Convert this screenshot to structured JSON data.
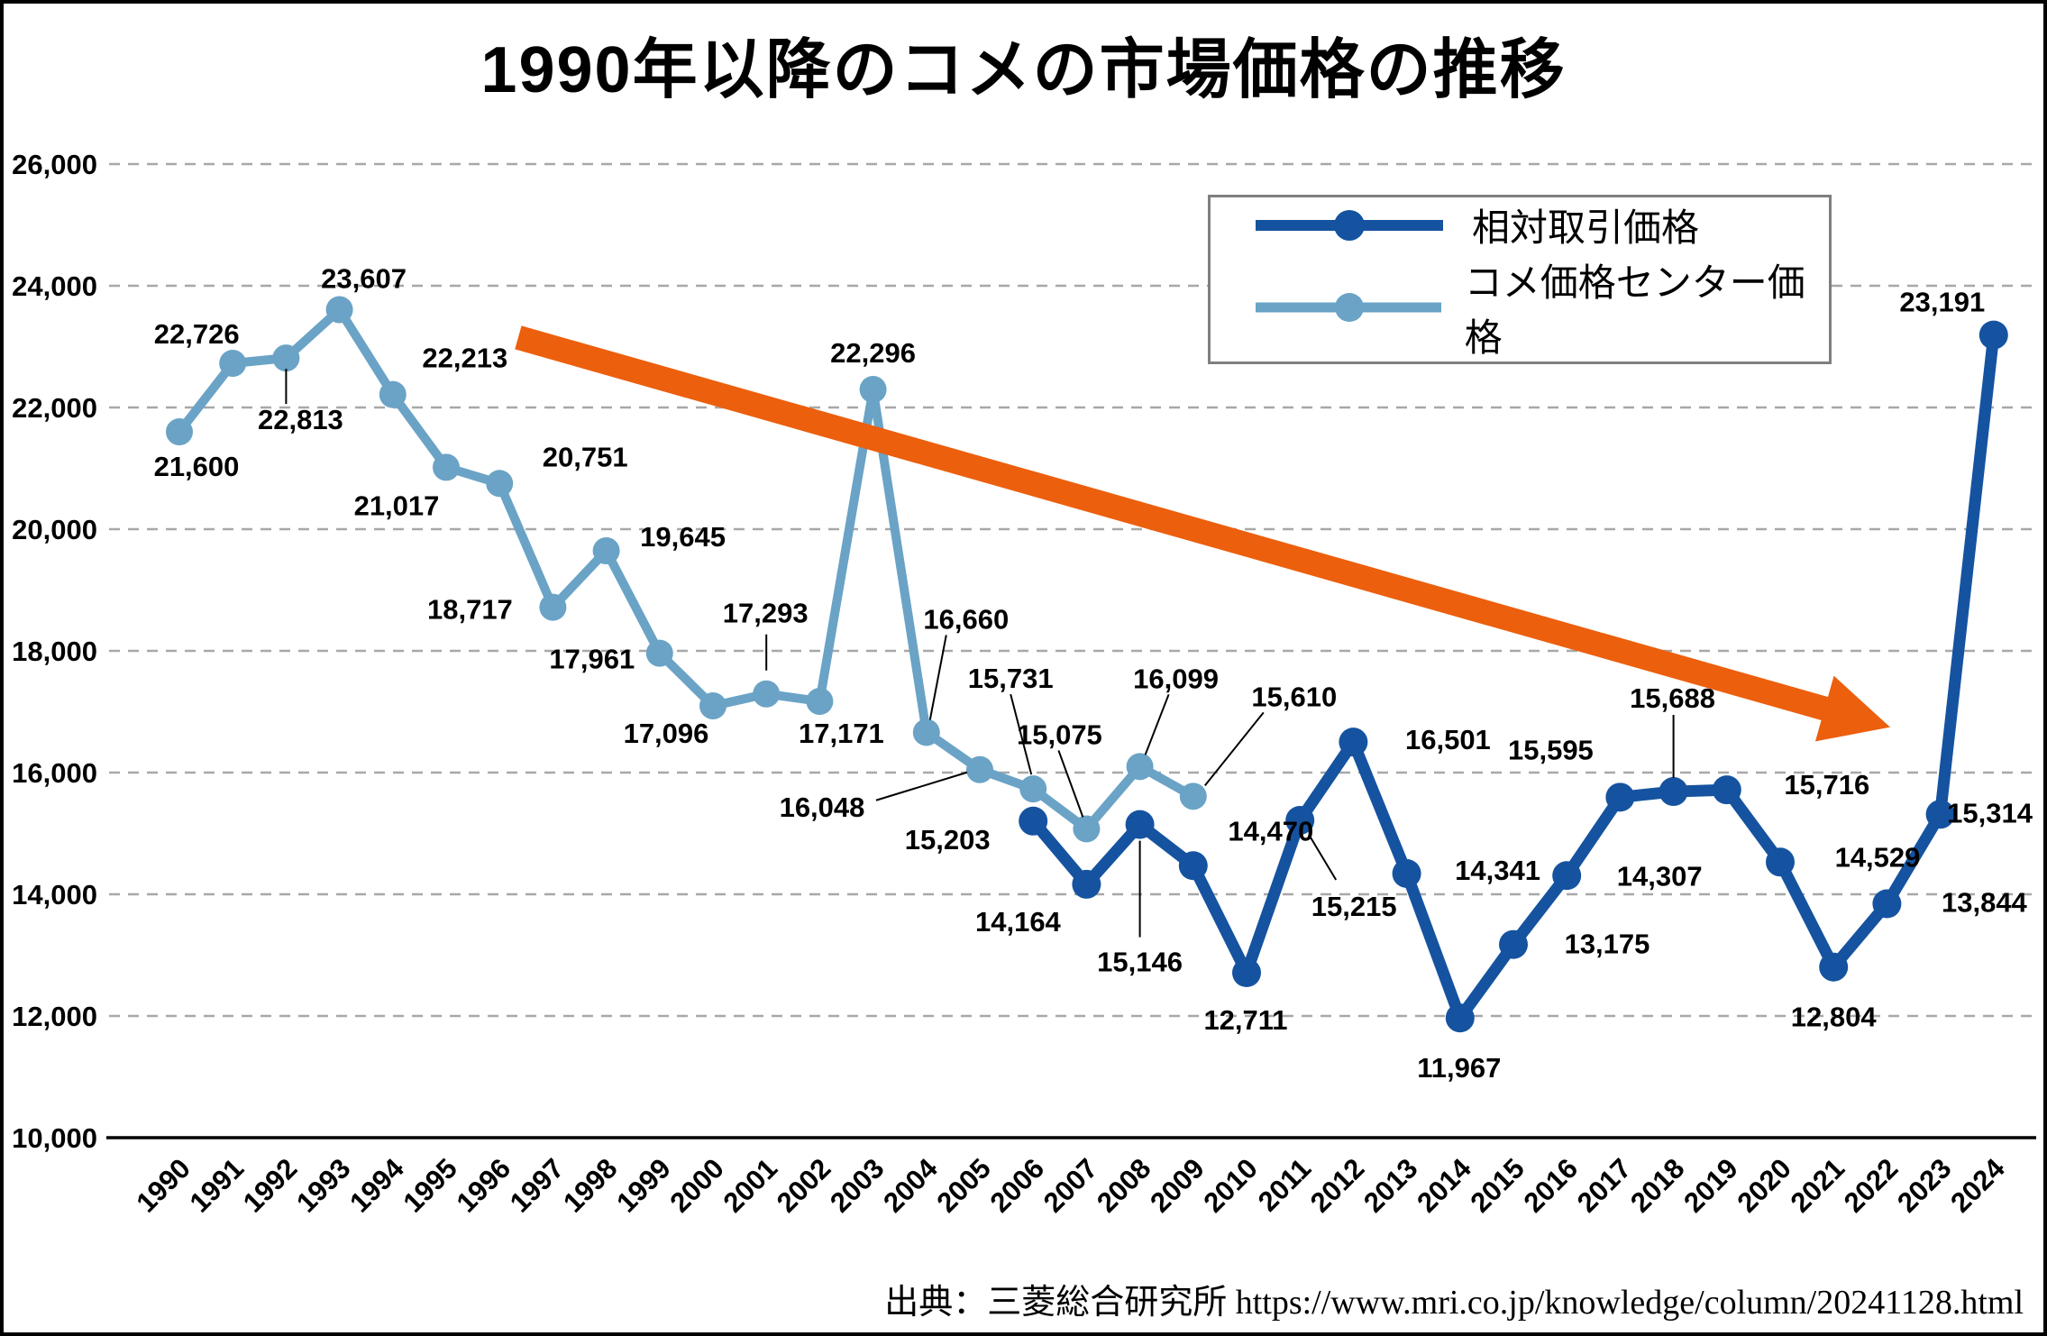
{
  "title": "1990年以降のコメの市場価格の推移",
  "source": "出典：三菱総合研究所 https://www.mri.co.jp/knowledge/column/20241128.html",
  "legend": {
    "position": "top-right",
    "items": [
      {
        "label": "相対取引価格",
        "color": "#1553a0"
      },
      {
        "label": "コメ価格センター価格",
        "color": "#6aa3c6"
      }
    ]
  },
  "colors": {
    "dark_blue_series": "#1553a0",
    "light_blue_series": "#6aa3c6",
    "trend_arrow_orange": "#ec5f0d",
    "gridline_gray": "#a8a8a8",
    "axis_black": "#000000",
    "legend_border_gray": "#7f7f7f",
    "background": "#ffffff",
    "label_black": "#000000"
  },
  "chart_data": {
    "type": "line",
    "title": "1990年以降のコメの市場価格の推移",
    "xlabel": "",
    "ylabel": "",
    "x_years": [
      1990,
      1991,
      1992,
      1993,
      1994,
      1995,
      1996,
      1997,
      1998,
      1999,
      2000,
      2001,
      2002,
      2003,
      2004,
      2005,
      2006,
      2007,
      2008,
      2009,
      2010,
      2011,
      2012,
      2013,
      2014,
      2015,
      2016,
      2017,
      2018,
      2019,
      2020,
      2021,
      2022,
      2023,
      2024
    ],
    "ylim": [
      10000,
      26000
    ],
    "yticks": [
      10000,
      12000,
      14000,
      16000,
      18000,
      20000,
      22000,
      24000,
      26000
    ],
    "grid": "horizontal-dashed",
    "legend_position": "top-right",
    "series": [
      {
        "name": "相対取引価格",
        "color": "#1553a0",
        "points": [
          {
            "year": 2006,
            "value": 15203,
            "dx": -95,
            "dy": 20
          },
          {
            "year": 2007,
            "value": 14164,
            "dx": -76,
            "dy": 41
          },
          {
            "year": 2008,
            "value": 15146,
            "dx": 0,
            "dy": 152,
            "leader": [
              0,
              18,
              0,
              125
            ]
          },
          {
            "year": 2009,
            "value": 14470,
            "dx": 86,
            "dy": -39
          },
          {
            "year": 2010,
            "value": 12711,
            "dx": -1,
            "dy": 52
          },
          {
            "year": 2011,
            "value": 15215,
            "dx": 60,
            "dy": 95,
            "leader": [
              10,
              16,
              40,
              66
            ]
          },
          {
            "year": 2012,
            "value": 16501,
            "dx": 105,
            "dy": -3
          },
          {
            "year": 2013,
            "value": 14341,
            "dx": 101,
            "dy": -4
          },
          {
            "year": 2014,
            "value": 11967,
            "dx": -1,
            "dy": 55
          },
          {
            "year": 2015,
            "value": 13175,
            "dx": 104,
            "dy": -1
          },
          {
            "year": 2016,
            "value": 14307,
            "dx": 103,
            "dy": 0
          },
          {
            "year": 2017,
            "value": 15595,
            "dx": -77,
            "dy": -53
          },
          {
            "year": 2018,
            "value": 15688,
            "dx": -1,
            "dy": -104,
            "leader": [
              0,
              -85,
              0,
              -15
            ]
          },
          {
            "year": 2019,
            "value": 15716,
            "dx": 111,
            "dy": -6
          },
          {
            "year": 2020,
            "value": 14529,
            "dx": 108,
            "dy": -6
          },
          {
            "year": 2021,
            "value": 12804,
            "dx": 0,
            "dy": 55
          },
          {
            "year": 2022,
            "value": 13844,
            "dx": 108,
            "dy": -2
          },
          {
            "year": 2023,
            "value": 15314,
            "dx": 55,
            "dy": -2
          },
          {
            "year": 2024,
            "value": 23191,
            "dx": -57,
            "dy": -37
          }
        ]
      },
      {
        "name": "コメ価格センター価格",
        "color": "#6aa3c6",
        "points": [
          {
            "year": 1990,
            "value": 21600,
            "dx": 19,
            "dy": 38
          },
          {
            "year": 1991,
            "value": 22726,
            "dx": -40,
            "dy": -33
          },
          {
            "year": 1992,
            "value": 22813,
            "dx": 16,
            "dy": 68,
            "leader": [
              0,
              12,
              0,
              51
            ]
          },
          {
            "year": 1993,
            "value": 23607,
            "dx": 27,
            "dy": -35
          },
          {
            "year": 1994,
            "value": 22213,
            "dx": 80,
            "dy": -41
          },
          {
            "year": 1995,
            "value": 21017,
            "dx": -55,
            "dy": 42
          },
          {
            "year": 1996,
            "value": 20751,
            "dx": 95,
            "dy": -30
          },
          {
            "year": 1997,
            "value": 18717,
            "dx": -92,
            "dy": 2
          },
          {
            "year": 1998,
            "value": 19645,
            "dx": 85,
            "dy": -16
          },
          {
            "year": 1999,
            "value": 17961,
            "dx": -75,
            "dy": 6
          },
          {
            "year": 2000,
            "value": 17096,
            "dx": -52,
            "dy": 30
          },
          {
            "year": 2001,
            "value": 17293,
            "dx": -1,
            "dy": -90,
            "leader": [
              0,
              -66,
              0,
              -26
            ]
          },
          {
            "year": 2002,
            "value": 17171,
            "dx": 24,
            "dy": 35
          },
          {
            "year": 2003,
            "value": 22296,
            "dx": 0,
            "dy": -41
          },
          {
            "year": 2004,
            "value": 16660,
            "dx": 44,
            "dy": -126,
            "leader": [
              22,
              -108,
              4,
              -14
            ]
          },
          {
            "year": 2005,
            "value": 16048,
            "dx": -175,
            "dy": 41,
            "leader": [
              -115,
              34,
              -14,
              3
            ]
          },
          {
            "year": 2006,
            "value": 15731,
            "dx": -25,
            "dy": -123,
            "leader": [
              -25,
              -105,
              -2,
              -16
            ]
          },
          {
            "year": 2007,
            "value": 15075,
            "dx": -30,
            "dy": -105,
            "leader": [
              -31,
              -87,
              -4,
              -13
            ]
          },
          {
            "year": 2008,
            "value": 16099,
            "dx": 40,
            "dy": -98,
            "leader": [
              32,
              -80,
              6,
              -13
            ]
          },
          {
            "year": 2009,
            "value": 15610,
            "dx": 112,
            "dy": -111,
            "leader": [
              78,
              -93,
              13,
              -12
            ]
          }
        ]
      }
    ],
    "trend_arrow": {
      "from_year": 1996.35,
      "from_value": 23150,
      "to_year": 2021.2,
      "to_value": 16960,
      "color": "#ec5f0d"
    }
  }
}
